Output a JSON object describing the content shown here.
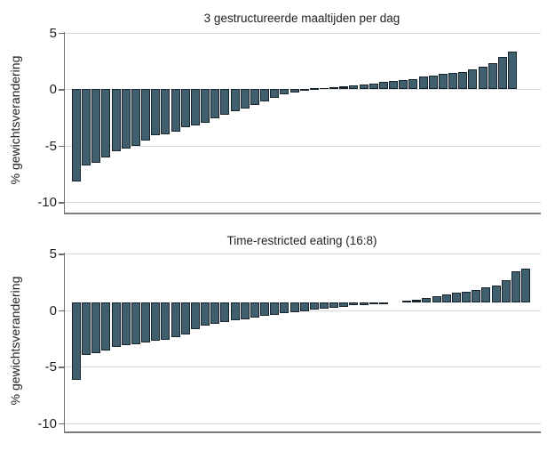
{
  "figure": {
    "description": "Two waterfall bar charts of individual percent weight change per participant",
    "y_axis": {
      "label": "% gewichtsverandering",
      "ticks": [
        5,
        0,
        -5,
        -10
      ],
      "tick_labels": [
        "5",
        "0",
        "-5",
        "-10"
      ]
    },
    "colors": {
      "bar_fill": "#3f5e6e",
      "bar_border": "#18242c",
      "gridline": "#d9d9d9",
      "spine": "#7a7a7a",
      "axis": "#6e6e6e",
      "text": "#1f1f1f",
      "background": "#ffffff"
    }
  },
  "chart_data": [
    {
      "type": "bar",
      "title": "3 gestructureerde maaltijden per dag",
      "ylabel": "% gewichtsverandering",
      "ylim": [
        -11.5,
        5.5
      ],
      "gridlines": [
        5,
        0,
        -5,
        -10
      ],
      "grid": true,
      "legend": "none",
      "baseline": 0,
      "gap_after_index": null,
      "values": [
        -8.2,
        -6.8,
        -6.5,
        -6.1,
        -5.5,
        -5.3,
        -5.0,
        -4.6,
        -4.1,
        -4.0,
        -3.8,
        -3.4,
        -3.2,
        -3.0,
        -2.6,
        -2.3,
        -2.0,
        -1.7,
        -1.4,
        -1.1,
        -0.8,
        -0.5,
        -0.3,
        -0.15,
        0.05,
        0.1,
        0.15,
        0.2,
        0.3,
        0.4,
        0.5,
        0.6,
        0.7,
        0.8,
        0.9,
        1.1,
        1.2,
        1.3,
        1.4,
        1.5,
        1.7,
        2.0,
        2.3,
        2.8,
        3.3
      ]
    },
    {
      "type": "bar",
      "title": "Time-restricted eating (16:8)",
      "ylabel": "% gewichtsverandering",
      "ylim": [
        -11.5,
        5.5
      ],
      "gridlines": [
        5,
        0,
        -5,
        -10
      ],
      "grid": true,
      "legend": "none",
      "baseline": 0.7,
      "gap_after_index": 31,
      "values": [
        -6.2,
        -4.0,
        -3.8,
        -3.6,
        -3.3,
        -3.1,
        -3.0,
        -2.9,
        -2.7,
        -2.6,
        -2.4,
        -2.2,
        -1.7,
        -1.4,
        -1.2,
        -1.1,
        -0.9,
        -0.8,
        -0.7,
        -0.5,
        -0.4,
        -0.3,
        -0.2,
        -0.1,
        0.0,
        0.1,
        0.2,
        0.3,
        0.4,
        0.45,
        0.5,
        0.55,
        0.8,
        0.9,
        1.1,
        1.25,
        1.4,
        1.5,
        1.6,
        1.8,
        2.0,
        2.2,
        2.6,
        3.45,
        3.65
      ]
    }
  ]
}
